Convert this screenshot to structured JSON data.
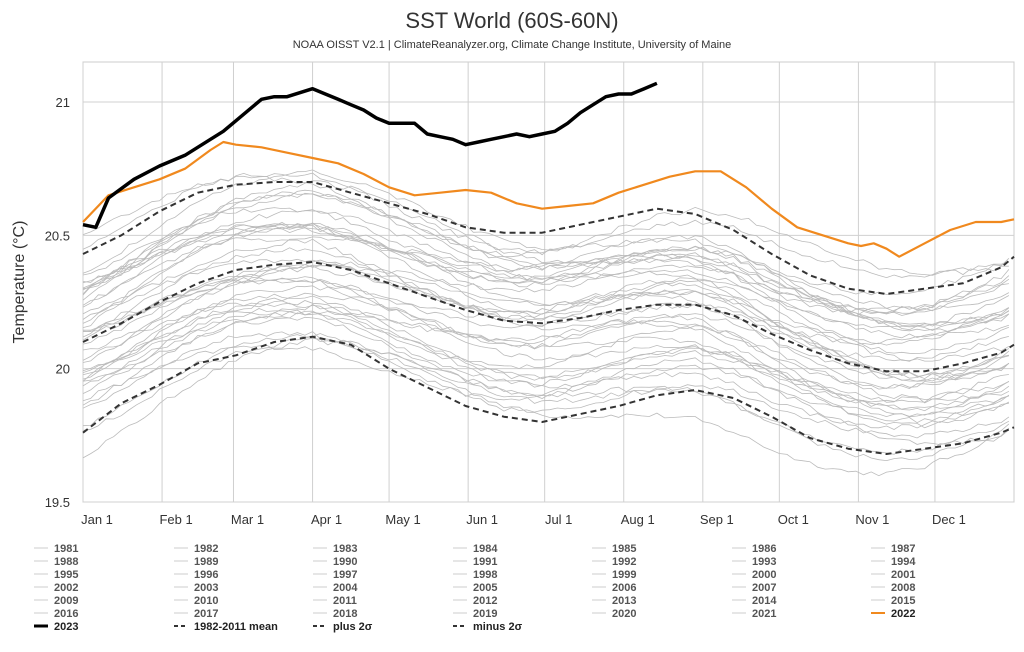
{
  "chart_data": {
    "type": "line",
    "title": "SST World (60S-60N)",
    "subtitle": "NOAA OISST V2.1 | ClimateReanalyzer.org, Climate Change Institute, University of Maine",
    "ylabel": "Temperature (°C)",
    "xlabel": "",
    "ylim": [
      19.5,
      21.15
    ],
    "yticks": [
      19.5,
      20,
      20.5,
      21
    ],
    "ytick_labels": [
      "19.5",
      "20",
      "20.5",
      "21"
    ],
    "xlim": [
      0,
      365
    ],
    "month_ticks": [
      {
        "label": "Jan 1",
        "day": 0
      },
      {
        "label": "Feb 1",
        "day": 31
      },
      {
        "label": "Mar 1",
        "day": 59
      },
      {
        "label": "Apr 1",
        "day": 90
      },
      {
        "label": "May 1",
        "day": 120
      },
      {
        "label": "Jun 1",
        "day": 151
      },
      {
        "label": "Jul 1",
        "day": 181
      },
      {
        "label": "Aug 1",
        "day": 212
      },
      {
        "label": "Sep 1",
        "day": 243
      },
      {
        "label": "Oct 1",
        "day": 273
      },
      {
        "label": "Nov 1",
        "day": 304
      },
      {
        "label": "Dec 1",
        "day": 334
      }
    ],
    "grid": true,
    "legend_placement": "bottom",
    "year_gray_color": "#bbbbbb",
    "series": [
      {
        "name": "2023",
        "style": "solid-thick",
        "color": "#000000",
        "x": [
          0,
          5,
          10,
          20,
          30,
          40,
          50,
          55,
          60,
          70,
          75,
          80,
          90,
          95,
          100,
          105,
          110,
          115,
          120,
          130,
          135,
          140,
          145,
          150,
          155,
          160,
          165,
          170,
          175,
          180,
          185,
          190,
          195,
          200,
          205,
          210,
          215,
          220,
          225
        ],
        "y": [
          20.54,
          20.53,
          20.64,
          20.71,
          20.76,
          20.8,
          20.86,
          20.89,
          20.93,
          21.01,
          21.02,
          21.02,
          21.05,
          21.03,
          21.01,
          20.99,
          20.97,
          20.94,
          20.92,
          20.92,
          20.88,
          20.87,
          20.86,
          20.84,
          20.85,
          20.86,
          20.87,
          20.88,
          20.87,
          20.88,
          20.89,
          20.92,
          20.96,
          20.99,
          21.02,
          21.03,
          21.03,
          21.05,
          21.07
        ]
      },
      {
        "name": "2022",
        "style": "solid",
        "color": "#f0891e",
        "x": [
          0,
          10,
          20,
          30,
          40,
          50,
          55,
          60,
          70,
          80,
          90,
          100,
          110,
          120,
          130,
          140,
          150,
          160,
          170,
          180,
          190,
          200,
          210,
          220,
          230,
          240,
          250,
          260,
          270,
          280,
          290,
          300,
          305,
          310,
          315,
          320,
          330,
          340,
          350,
          360,
          365
        ],
        "y": [
          20.55,
          20.65,
          20.68,
          20.71,
          20.75,
          20.82,
          20.85,
          20.84,
          20.83,
          20.81,
          20.79,
          20.77,
          20.73,
          20.68,
          20.65,
          20.66,
          20.67,
          20.66,
          20.62,
          20.6,
          20.61,
          20.62,
          20.66,
          20.69,
          20.72,
          20.74,
          20.74,
          20.68,
          20.6,
          20.53,
          20.5,
          20.47,
          20.46,
          20.47,
          20.45,
          20.42,
          20.47,
          20.52,
          20.55,
          20.55,
          20.56
        ]
      },
      {
        "name": "1982-2011 mean",
        "style": "dashed",
        "color": "#333333",
        "x": [
          0,
          15,
          30,
          45,
          60,
          75,
          90,
          105,
          120,
          135,
          150,
          165,
          180,
          195,
          210,
          225,
          240,
          255,
          270,
          285,
          300,
          315,
          330,
          345,
          360,
          365
        ],
        "y": [
          20.1,
          20.17,
          20.25,
          20.32,
          20.37,
          20.39,
          20.4,
          20.37,
          20.32,
          20.27,
          20.22,
          20.18,
          20.17,
          20.19,
          20.22,
          20.24,
          20.24,
          20.2,
          20.13,
          20.07,
          20.02,
          19.99,
          19.99,
          20.02,
          20.06,
          20.09
        ]
      },
      {
        "name": "plus 2σ",
        "style": "dashed",
        "color": "#333333",
        "x": [
          0,
          15,
          30,
          45,
          60,
          75,
          90,
          105,
          120,
          135,
          150,
          165,
          180,
          195,
          210,
          225,
          240,
          255,
          270,
          285,
          300,
          315,
          330,
          345,
          360,
          365
        ],
        "y": [
          20.43,
          20.5,
          20.59,
          20.66,
          20.69,
          20.7,
          20.7,
          20.66,
          20.62,
          20.58,
          20.53,
          20.51,
          20.51,
          20.54,
          20.57,
          20.6,
          20.58,
          20.52,
          20.43,
          20.35,
          20.3,
          20.28,
          20.3,
          20.32,
          20.38,
          20.42
        ]
      },
      {
        "name": "minus 2σ",
        "style": "dashed",
        "color": "#333333",
        "x": [
          0,
          15,
          30,
          45,
          60,
          75,
          90,
          105,
          120,
          135,
          150,
          165,
          180,
          195,
          210,
          225,
          240,
          255,
          270,
          285,
          300,
          315,
          330,
          345,
          360,
          365
        ],
        "y": [
          19.76,
          19.87,
          19.94,
          20.02,
          20.05,
          20.1,
          20.12,
          20.09,
          20.0,
          19.93,
          19.86,
          19.82,
          19.8,
          19.83,
          19.86,
          19.9,
          19.92,
          19.89,
          19.82,
          19.74,
          19.7,
          19.68,
          19.7,
          19.72,
          19.76,
          19.78
        ]
      }
    ],
    "legend": [
      [
        "1981",
        "1982",
        "1983",
        "1984",
        "1985",
        "1986",
        "1987"
      ],
      [
        "1988",
        "1989",
        "1990",
        "1991",
        "1992",
        "1993",
        "1994"
      ],
      [
        "1995",
        "1996",
        "1997",
        "1998",
        "1999",
        "2000",
        "2001"
      ],
      [
        "2002",
        "2003",
        "2004",
        "2005",
        "2006",
        "2007",
        "2008"
      ],
      [
        "2009",
        "2010",
        "2011",
        "2012",
        "2013",
        "2014",
        "2015"
      ],
      [
        "2016",
        "2017",
        "2018",
        "2019",
        "2020",
        "2021",
        "2022"
      ],
      [
        "2023",
        "1982-2011 mean",
        "plus 2σ",
        "minus 2σ"
      ]
    ],
    "legend_styles": {
      "2022": {
        "color": "#f0891e",
        "dash": "",
        "width": 2
      },
      "2023": {
        "color": "#000000",
        "dash": "",
        "width": 3
      },
      "1982-2011 mean": {
        "color": "#333333",
        "dash": "4,3",
        "width": 2
      },
      "plus 2σ": {
        "color": "#333333",
        "dash": "4,3",
        "width": 2
      },
      "minus 2σ": {
        "color": "#333333",
        "dash": "4,3",
        "width": 2
      }
    }
  }
}
